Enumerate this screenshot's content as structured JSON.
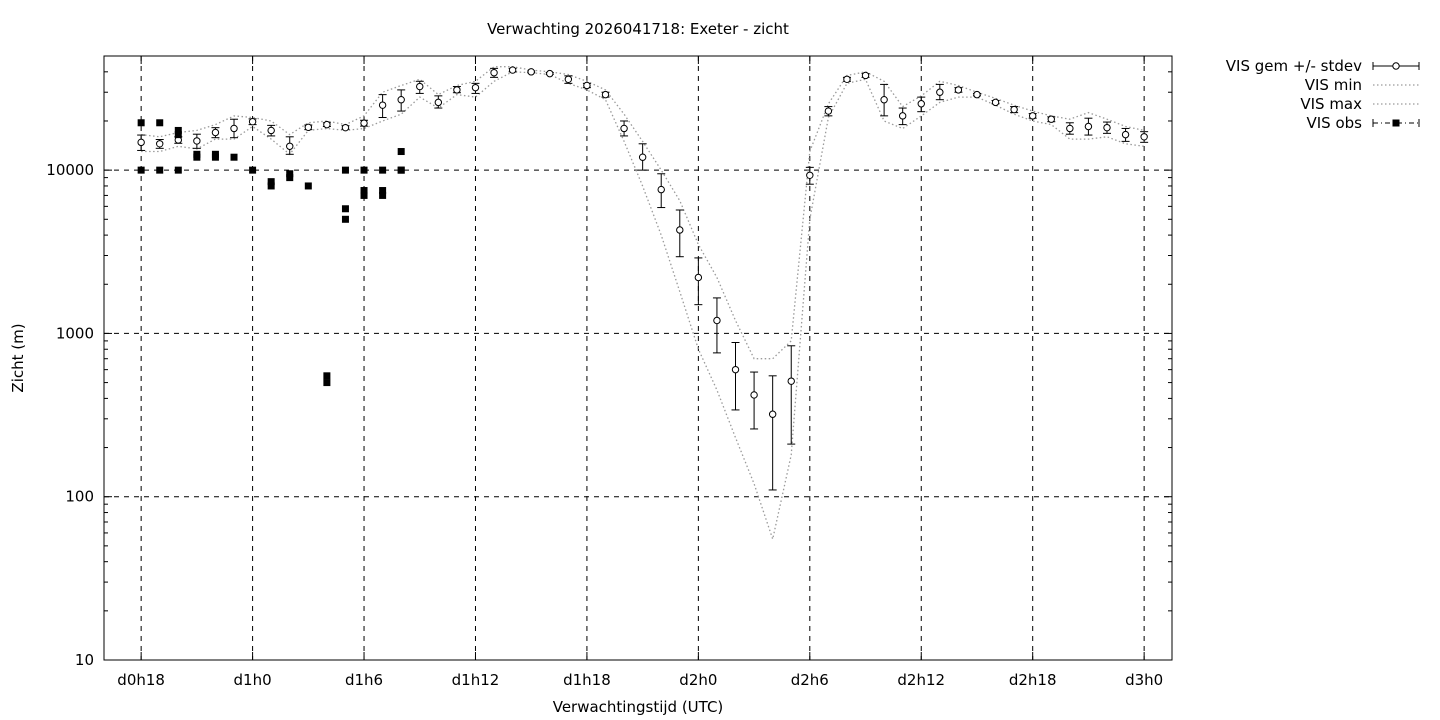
{
  "chart_data": {
    "type": "line",
    "title": "Verwachting 2026041718: Exeter - zicht",
    "xlabel": "Verwachtingstijd (UTC)",
    "ylabel": "Zicht (m)",
    "yscale": "log",
    "ylim": [
      10,
      50000
    ],
    "xlim": [
      -2,
      55.5
    ],
    "grid": true,
    "legend_position": "outside-top-right",
    "x_tick_labels": [
      {
        "x": 0,
        "label": "d0h18"
      },
      {
        "x": 6,
        "label": "d1h0"
      },
      {
        "x": 12,
        "label": "d1h6"
      },
      {
        "x": 18,
        "label": "d1h12"
      },
      {
        "x": 24,
        "label": "d1h18"
      },
      {
        "x": 30,
        "label": "d2h0"
      },
      {
        "x": 36,
        "label": "d2h6"
      },
      {
        "x": 42,
        "label": "d2h12"
      },
      {
        "x": 48,
        "label": "d2h18"
      },
      {
        "x": 54,
        "label": "d3h0"
      }
    ],
    "y_tick_labels": [
      {
        "y": 10,
        "label": "10"
      },
      {
        "y": 100,
        "label": "100"
      },
      {
        "y": 1000,
        "label": "1000"
      },
      {
        "y": 10000,
        "label": "10000"
      }
    ],
    "legend": [
      {
        "name": "VIS gem +/- stdev",
        "style": "errorbar-circle"
      },
      {
        "name": "VIS min",
        "style": "dotted"
      },
      {
        "name": "VIS max",
        "style": "dotted"
      },
      {
        "name": "VIS obs",
        "style": "dashdot-square"
      }
    ],
    "series": [
      {
        "name": "VIS gem +/- stdev",
        "x": [
          0,
          1,
          2,
          3,
          4,
          5,
          6,
          7,
          8,
          9,
          10,
          11,
          12,
          13,
          14,
          15,
          16,
          17,
          18,
          19,
          20,
          21,
          22,
          23,
          24,
          25,
          26,
          27,
          28,
          29,
          30,
          31,
          32,
          33,
          34,
          35,
          36,
          37,
          38,
          39,
          40,
          41,
          42,
          43,
          44,
          45,
          46,
          47,
          48,
          49,
          50,
          51,
          52,
          53,
          54
        ],
        "y": [
          14800,
          14500,
          15300,
          15100,
          17000,
          18000,
          19800,
          17500,
          14000,
          18300,
          19000,
          18200,
          19400,
          25000,
          27000,
          32500,
          26000,
          31000,
          32000,
          39500,
          41000,
          40000,
          39000,
          36000,
          33000,
          29000,
          18000,
          12000,
          7600,
          4300,
          2200,
          1200,
          600,
          420,
          320,
          510,
          9300,
          23000,
          36000,
          38000,
          27000,
          21500,
          25500,
          30000,
          31000,
          29000,
          26000,
          23500,
          21500,
          20500,
          18000,
          18500,
          18200,
          16500,
          16000
        ],
        "err_low": [
          13200,
          13600,
          14600,
          13600,
          15800,
          15800,
          19000,
          16200,
          12500,
          17700,
          18500,
          17800,
          18600,
          21000,
          23000,
          29500,
          24000,
          29800,
          29500,
          37000,
          40000,
          39500,
          38600,
          34000,
          32000,
          28000,
          16200,
          10000,
          5900,
          2950,
          1500,
          760,
          340,
          260,
          110,
          210,
          8200,
          21500,
          35000,
          37000,
          21500,
          19000,
          22800,
          27000,
          30000,
          28500,
          25500,
          22500,
          20800,
          19800,
          16600,
          16400,
          16800,
          15000,
          14800
        ],
        "err_high": [
          16400,
          15400,
          16000,
          16600,
          18200,
          20500,
          20600,
          18800,
          16000,
          18900,
          19500,
          18700,
          20200,
          29000,
          31000,
          35000,
          28500,
          32500,
          34000,
          42000,
          42000,
          40500,
          39600,
          37800,
          34000,
          30000,
          20000,
          14500,
          9500,
          5700,
          2900,
          1650,
          880,
          580,
          550,
          840,
          10400,
          24500,
          37000,
          39000,
          33500,
          24000,
          28000,
          33500,
          32000,
          29500,
          26700,
          24500,
          22200,
          21200,
          19500,
          20800,
          19700,
          18000,
          17200
        ]
      },
      {
        "name": "VIS min",
        "x": [
          0,
          1,
          2,
          3,
          4,
          5,
          6,
          7,
          8,
          9,
          10,
          11,
          12,
          13,
          14,
          15,
          16,
          17,
          18,
          19,
          20,
          21,
          22,
          23,
          24,
          25,
          26,
          27,
          28,
          29,
          30,
          31,
          32,
          33,
          34,
          35,
          36,
          37,
          38,
          39,
          40,
          41,
          42,
          43,
          44,
          45,
          46,
          47,
          48,
          49,
          50,
          51,
          52,
          53,
          54
        ],
        "y": [
          13000,
          13000,
          14000,
          13500,
          15500,
          15500,
          18500,
          15500,
          12500,
          17500,
          18000,
          17500,
          18000,
          20000,
          22000,
          28000,
          24000,
          29000,
          28000,
          35000,
          40000,
          39500,
          38500,
          34000,
          31000,
          27000,
          15000,
          8000,
          4000,
          1800,
          800,
          450,
          230,
          120,
          55,
          180,
          5000,
          21000,
          34000,
          36000,
          20000,
          18000,
          21500,
          26000,
          28000,
          28000,
          25000,
          22000,
          20000,
          19000,
          15500,
          15500,
          16000,
          14500,
          14000
        ]
      },
      {
        "name": "VIS max",
        "x": [
          0,
          1,
          2,
          3,
          4,
          5,
          6,
          7,
          8,
          9,
          10,
          11,
          12,
          13,
          14,
          15,
          16,
          17,
          18,
          19,
          20,
          21,
          22,
          23,
          24,
          25,
          26,
          27,
          28,
          29,
          30,
          31,
          32,
          33,
          34,
          35,
          36,
          37,
          38,
          39,
          40,
          41,
          42,
          43,
          44,
          45,
          46,
          47,
          48,
          49,
          50,
          51,
          52,
          53,
          54
        ],
        "y": [
          16500,
          16000,
          17000,
          17500,
          19000,
          21500,
          21000,
          20000,
          16500,
          19500,
          20000,
          19000,
          21500,
          30000,
          33000,
          36000,
          29000,
          33000,
          35000,
          43000,
          43000,
          41000,
          40000,
          38500,
          35000,
          31000,
          22000,
          15000,
          10000,
          6500,
          3500,
          2200,
          1200,
          700,
          700,
          900,
          13000,
          25500,
          38000,
          40000,
          35000,
          24500,
          28500,
          35000,
          33000,
          30000,
          27500,
          25000,
          23000,
          21500,
          20500,
          22500,
          20500,
          18500,
          17500
        ]
      },
      {
        "name": "VIS obs",
        "x": [
          0,
          0,
          1,
          1,
          2,
          2,
          2,
          3,
          3,
          4,
          4,
          5,
          6,
          7,
          7,
          8,
          8,
          9,
          10,
          10,
          11,
          11,
          11,
          12,
          12,
          12,
          13,
          13,
          13,
          14,
          14,
          14
        ],
        "y": [
          19500,
          10000,
          19500,
          10000,
          17500,
          16500,
          10000,
          12500,
          12000,
          12500,
          12000,
          12000,
          10000,
          8500,
          8000,
          9500,
          9000,
          8000,
          550,
          500,
          5800,
          5000,
          10000,
          10000,
          7500,
          7000,
          10000,
          7500,
          7000,
          13000,
          10000,
          10000
        ]
      }
    ]
  }
}
